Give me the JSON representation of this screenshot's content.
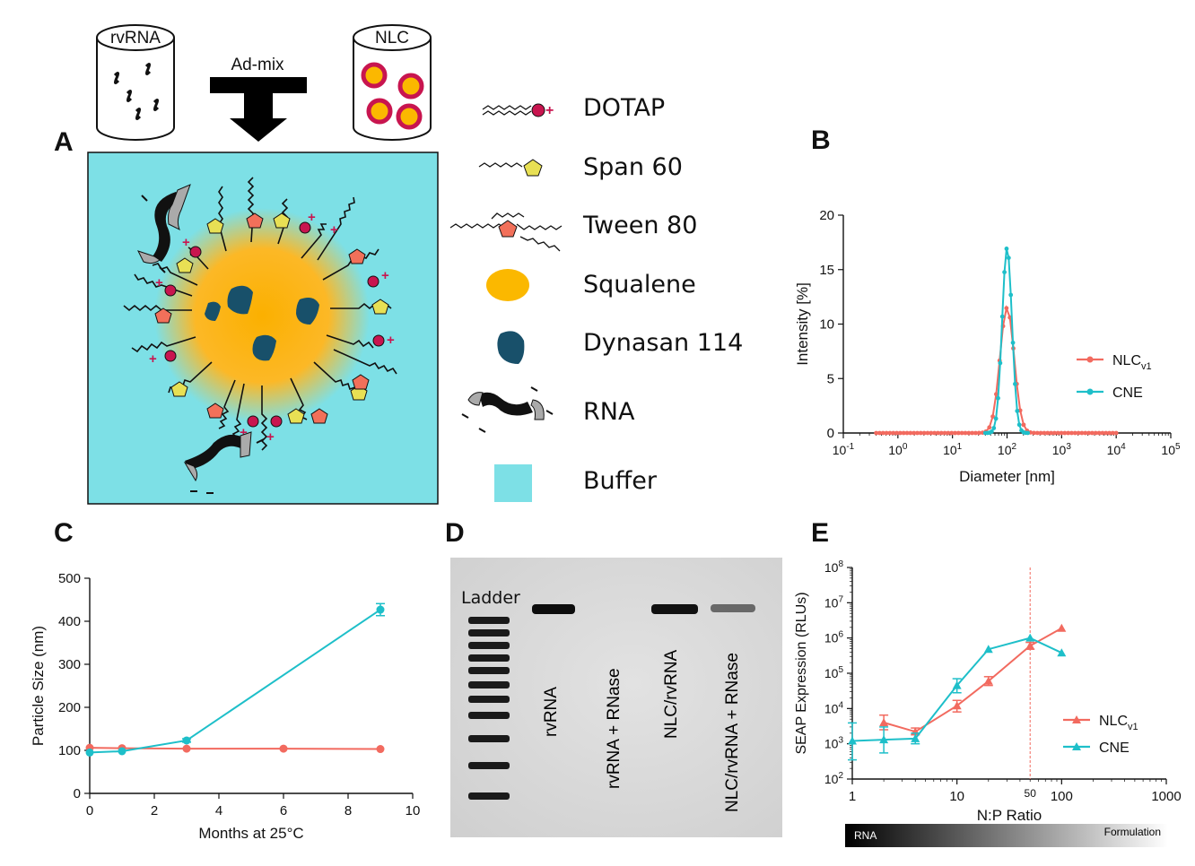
{
  "panels": {
    "A": "A",
    "B": "B",
    "C": "C",
    "D": "D",
    "E": "E"
  },
  "panel_a": {
    "rvrna_label": "rvRNA",
    "admix_label": "Ad-mix",
    "nlc_label": "NLC",
    "legend": [
      {
        "label": "DOTAP",
        "icon": "dotap-icon"
      },
      {
        "label": "Span 60",
        "icon": "span60-icon"
      },
      {
        "label": "Tween 80",
        "icon": "tween80-icon"
      },
      {
        "label": "Squalene",
        "icon": "squalene-icon"
      },
      {
        "label": "Dynasan 114",
        "icon": "dynasan-icon"
      },
      {
        "label": "RNA",
        "icon": "rna-icon"
      },
      {
        "label": "Buffer",
        "icon": "buffer-icon"
      }
    ],
    "colors": {
      "buffer": "#7de0e6",
      "squalene": "#fbb800",
      "dotap_head": "#c8154f",
      "span60": "#e8e054",
      "tween80": "#f2705a",
      "dynasan": "#18506a"
    }
  },
  "gel": {
    "ladder_label": "Ladder",
    "lanes": [
      "rvRNA",
      "rvRNA + RNase",
      "NLC/rvRNA",
      "NLC/rvRNA + RNase"
    ]
  },
  "gradient_bar": {
    "left": "RNA",
    "right": "Formulation"
  },
  "chart_data": [
    {
      "panel": "B",
      "type": "line",
      "xlabel": "Diameter [nm]",
      "ylabel": "Intensity [%]",
      "xscale": "log",
      "xlim": [
        0.1,
        100000
      ],
      "ylim": [
        0,
        20
      ],
      "yticks": [
        "0",
        "5",
        "10",
        "15",
        "20"
      ],
      "xticks": [
        {
          "base": "10",
          "exp": "-1"
        },
        {
          "base": "10",
          "exp": "0"
        },
        {
          "base": "10",
          "exp": "1"
        },
        {
          "base": "10",
          "exp": "2"
        },
        {
          "base": "10",
          "exp": "3"
        },
        {
          "base": "10",
          "exp": "4"
        },
        {
          "base": "10",
          "exp": "5"
        }
      ],
      "legend_position": "right",
      "series": [
        {
          "name": "NLC",
          "name_sub": "v1",
          "color": "#f26a5f",
          "peak_x": 100,
          "peak_y": 11.5,
          "sigma_log10": 0.13,
          "x_range": [
            0.4,
            10000
          ]
        },
        {
          "name": "CNE",
          "name_sub": "",
          "color": "#1ebfc9",
          "peak_x": 100,
          "peak_y": 17,
          "sigma_log10": 0.09,
          "x_range": [
            40,
            240
          ]
        }
      ]
    },
    {
      "panel": "C",
      "type": "line",
      "xlabel": "Months at 25°C",
      "ylabel": "Particle Size (nm)",
      "xlim": [
        0,
        10
      ],
      "ylim": [
        0,
        500
      ],
      "xticks": [
        "0",
        "2",
        "4",
        "6",
        "8",
        "10"
      ],
      "yticks": [
        "0",
        "100",
        "200",
        "300",
        "400",
        "500"
      ],
      "series": [
        {
          "color": "#f26a5f",
          "x": [
            0,
            1,
            3,
            6,
            9
          ],
          "y": [
            106,
            105,
            104,
            104,
            103
          ]
        },
        {
          "color": "#1ebfc9",
          "x": [
            0,
            1,
            3,
            9
          ],
          "y": [
            95,
            98,
            123,
            427
          ],
          "err": [
            0,
            0,
            4,
            14
          ]
        }
      ]
    },
    {
      "panel": "E",
      "type": "line",
      "xlabel": "N:P Ratio",
      "ylabel": "SEAP Expression (RLUs)",
      "xscale": "log",
      "yscale": "log",
      "xlim": [
        1,
        1000
      ],
      "ylim": [
        100,
        100000000
      ],
      "xticks": [
        "1",
        "10",
        "100",
        "1000"
      ],
      "extra_xtick": "50",
      "yticks": [
        {
          "base": "10",
          "exp": "2"
        },
        {
          "base": "10",
          "exp": "3"
        },
        {
          "base": "10",
          "exp": "4"
        },
        {
          "base": "10",
          "exp": "5"
        },
        {
          "base": "10",
          "exp": "6"
        },
        {
          "base": "10",
          "exp": "7"
        },
        {
          "base": "10",
          "exp": "8"
        }
      ],
      "vline_x": 50,
      "legend_position": "right",
      "series": [
        {
          "name": "NLC",
          "name_sub": "v1",
          "color": "#f26a5f",
          "x": [
            2,
            4,
            10,
            20,
            50,
            100
          ],
          "y": [
            4000,
            2200,
            12000,
            60000,
            600000,
            1900000
          ],
          "err_lo": [
            2500,
            1800,
            8000,
            45000,
            480000,
            1900000
          ],
          "err_hi": [
            6500,
            2800,
            17000,
            80000,
            750000,
            1900000
          ]
        },
        {
          "name": "CNE",
          "name_sub": "",
          "color": "#1ebfc9",
          "x": [
            1,
            2,
            4,
            10,
            20,
            50,
            100
          ],
          "y": [
            1200,
            1300,
            1400,
            45000,
            480000,
            1000000,
            380000
          ],
          "err_lo": [
            350,
            550,
            1000,
            28000,
            480000,
            1000000,
            380000
          ],
          "err_hi": [
            3900,
            3000,
            2000,
            70000,
            480000,
            1000000,
            380000
          ]
        }
      ]
    }
  ]
}
